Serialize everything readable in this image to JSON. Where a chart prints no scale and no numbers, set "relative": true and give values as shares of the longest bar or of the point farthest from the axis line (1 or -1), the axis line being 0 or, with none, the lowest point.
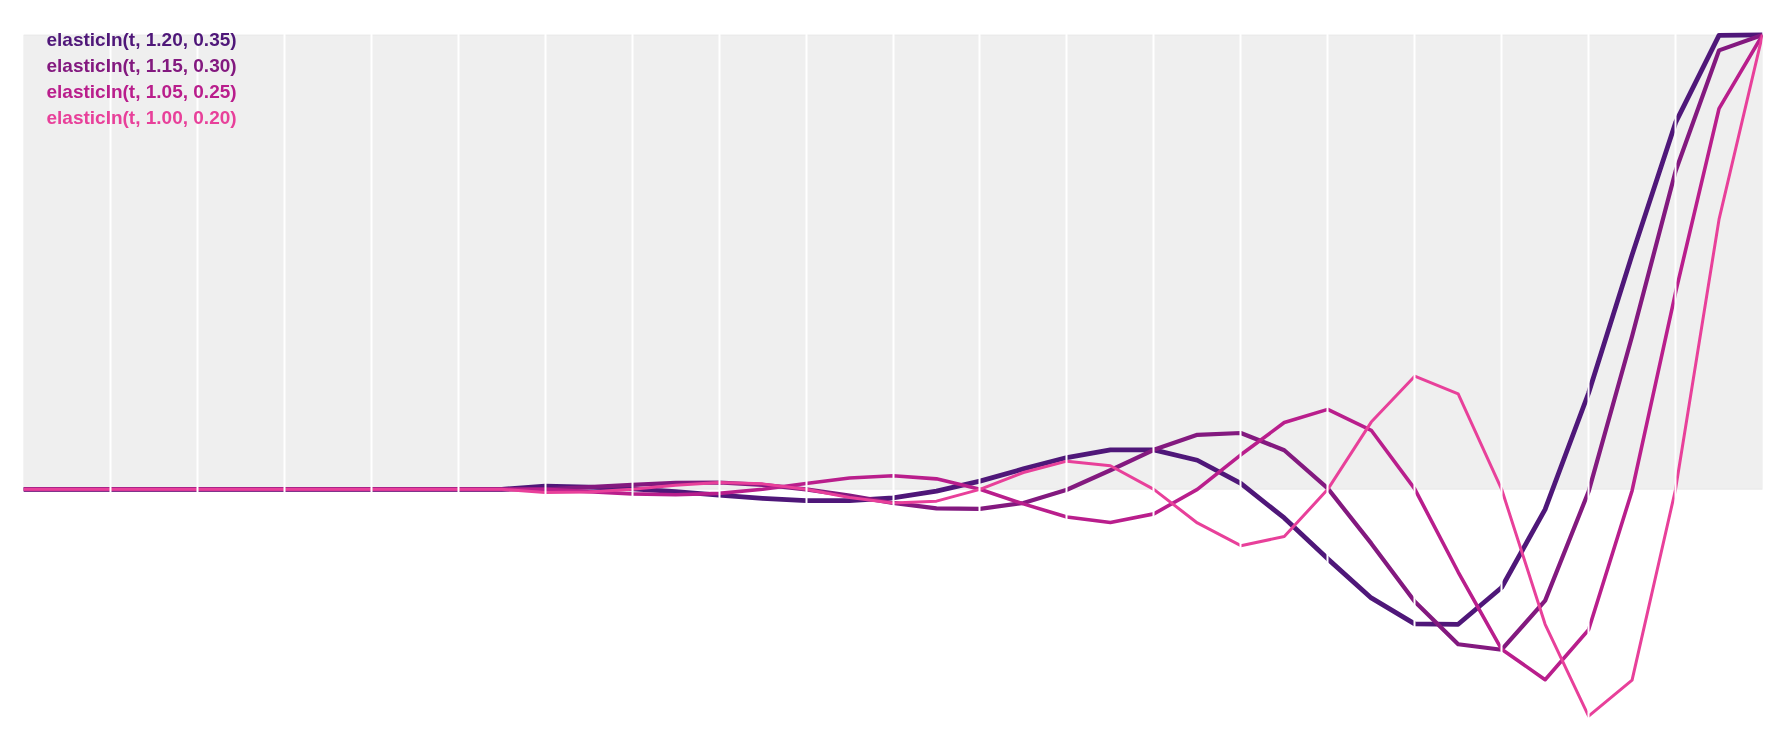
{
  "chart_data": {
    "type": "line",
    "relative": true,
    "categories": [
      null,
      null,
      null,
      null,
      null,
      null,
      null,
      null,
      null,
      null,
      null,
      null,
      null,
      null,
      null,
      null,
      null,
      null,
      null,
      null,
      null,
      null,
      null,
      null,
      null,
      null,
      null,
      null,
      null,
      null,
      null,
      null,
      null,
      null,
      null,
      null,
      null,
      null,
      null,
      null,
      null
    ],
    "tick_labels": false,
    "grid": "x",
    "line_style": "solid",
    "bands": [
      {
        "axis": "y",
        "from": 0,
        "to": 1,
        "color": "#efefef"
      }
    ],
    "series": [
      {
        "name": "elasticIn(t, 1.20, 0.35)",
        "color": "#4f1779",
        "values": [
          0,
          0,
          0,
          0,
          0,
          0,
          0,
          0,
          0,
          0,
          0,
          0,
          0.007,
          0.005,
          0.001,
          -0.005,
          -0.013,
          -0.02,
          -0.025,
          -0.025,
          -0.019,
          -0.004,
          0.018,
          0.045,
          0.07,
          0.087,
          0.087,
          0.064,
          0.013,
          -0.063,
          -0.153,
          -0.239,
          -0.296,
          -0.297,
          -0.216,
          -0.044,
          0.212,
          0.516,
          0.807,
          0.999,
          1
        ]
      },
      {
        "name": "elasticIn(t, 1.15, 0.30)",
        "color": "#83197f",
        "values": [
          0,
          0,
          0,
          0,
          0,
          0,
          0,
          0,
          0,
          0,
          0,
          0,
          0,
          0.005,
          0.01,
          0.014,
          0.015,
          0.01,
          0,
          -0.014,
          -0.03,
          -0.042,
          -0.043,
          -0.03,
          -0.001,
          0.042,
          0.087,
          0.12,
          0.124,
          0.086,
          0.002,
          -0.119,
          -0.247,
          -0.341,
          -0.353,
          -0.245,
          -0.005,
          0.337,
          0.7,
          0.966,
          1
        ]
      },
      {
        "name": "elasticIn(t, 1.05, 0.25)",
        "color": "#b91e8c",
        "values": [
          0,
          0,
          0,
          0,
          0,
          0,
          0,
          0,
          0,
          0,
          0,
          0,
          0,
          -0.005,
          -0.01,
          -0.012,
          -0.009,
          0,
          0.013,
          0.025,
          0.03,
          0.023,
          0,
          -0.032,
          -0.061,
          -0.073,
          -0.054,
          0,
          0.076,
          0.147,
          0.176,
          0.13,
          0.001,
          -0.182,
          -0.352,
          -0.419,
          -0.309,
          -0.003,
          0.433,
          0.838,
          1
        ]
      },
      {
        "name": "elasticIn(t, 1.00, 0.20)",
        "color": "#e8409a",
        "values": [
          0,
          0,
          0,
          0,
          0,
          0,
          0,
          0,
          0,
          0,
          0,
          0,
          -0.007,
          -0.006,
          0,
          0.009,
          0.015,
          0.012,
          0,
          -0.018,
          -0.03,
          -0.026,
          0,
          0.037,
          0.062,
          0.052,
          0,
          -0.074,
          -0.124,
          -0.104,
          0,
          0.148,
          0.249,
          0.21,
          0,
          -0.297,
          -0.499,
          -0.42,
          0,
          0.594,
          1
        ]
      }
    ]
  }
}
